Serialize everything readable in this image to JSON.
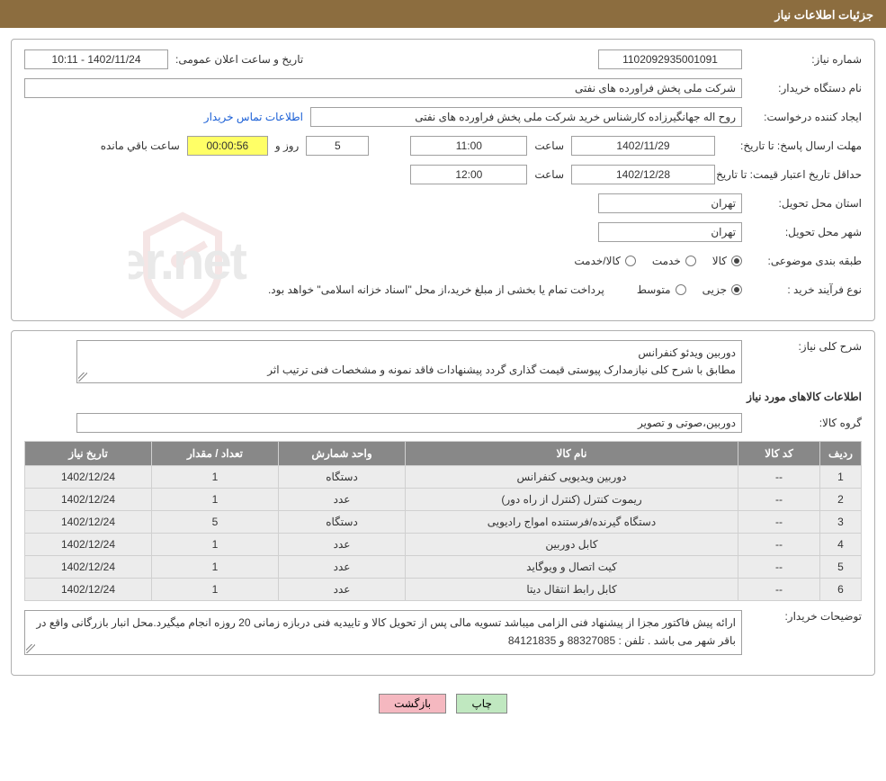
{
  "header": {
    "title": "جزئیات اطلاعات نیاز"
  },
  "labels": {
    "need_no": "شماره نیاز:",
    "announce": "تاریخ و ساعت اعلان عمومی:",
    "buyer_org": "نام دستگاه خریدار:",
    "requester": "ایجاد کننده درخواست:",
    "contact_link": "اطلاعات تماس خریدار",
    "deadline": "مهلت ارسال پاسخ: تا تاریخ:",
    "hour": "ساعت",
    "days_and": "روز و",
    "remaining": "ساعت باقي مانده",
    "min_validity": "حداقل تاریخ اعتبار قیمت: تا تاریخ:",
    "province": "استان محل تحویل:",
    "city": "شهر محل تحویل:",
    "classification": "طبقه بندی موضوعی:",
    "class_goods": "کالا",
    "class_service": "خدمت",
    "class_goods_service": "کالا/خدمت",
    "purchase_type": "نوع فرآیند خرید :",
    "pt_minor": "جزیی",
    "pt_medium": "متوسط",
    "pt_note": "پرداخت تمام یا بخشی از مبلغ خرید،از محل \"اسناد خزانه اسلامی\" خواهد بود.",
    "general_desc": "شرح کلی نیاز:",
    "items_info": "اطلاعات کالاهای مورد نیاز",
    "goods_group": "گروه کالا:",
    "buyer_notes": "توضیحات خریدار:"
  },
  "values": {
    "need_no": "1102092935001091",
    "announce": "1402/11/24 - 10:11",
    "buyer_org": "شرکت ملی پخش فراورده های نفتی",
    "requester": "روح اله جهانگیرزاده کارشناس خرید شرکت ملی پخش فراورده های نفتی",
    "deadline_date": "1402/11/29",
    "deadline_time": "11:00",
    "days_left": "5",
    "time_left": "00:00:56",
    "min_validity_date": "1402/12/28",
    "min_validity_time": "12:00",
    "province": "تهران",
    "city": "تهران",
    "general_desc": "دوربين ويدئو كنفرانس\nمطابق با شرح کلی نیازمدارک پیوستی قیمت گذاری گردد پیشنهادات فاقد نمونه و مشخصات فنی ترتیب اثر",
    "goods_group": "دوربین،صوتی و تصویر",
    "buyer_notes": "ارائه پیش فاکتور مجزا از پیشنهاد فنی الزامی میباشد تسویه مالی پس از تحویل کالا و تاییدیه فنی دربازه زمانی 20 روزه انجام میگیرد.محل انبار بازرگانی واقع در باقر شهر می باشد . تلفن : 88327085 و 84121835"
  },
  "table": {
    "headers": {
      "row": "ردیف",
      "code": "کد کالا",
      "name": "نام کالا",
      "unit": "واحد شمارش",
      "qty": "تعداد / مقدار",
      "date": "تاریخ نیاز"
    },
    "rows": [
      {
        "row": "1",
        "code": "--",
        "name": "دوربین ویدیویی کنفرانس",
        "unit": "دستگاه",
        "qty": "1",
        "date": "1402/12/24"
      },
      {
        "row": "2",
        "code": "--",
        "name": "ریموت کنترل (کنترل از راه دور)",
        "unit": "عدد",
        "qty": "1",
        "date": "1402/12/24"
      },
      {
        "row": "3",
        "code": "--",
        "name": "دستگاه گیرنده/فرستنده امواج رادیویی",
        "unit": "دستگاه",
        "qty": "5",
        "date": "1402/12/24"
      },
      {
        "row": "4",
        "code": "--",
        "name": "کابل دوربین",
        "unit": "عدد",
        "qty": "1",
        "date": "1402/12/24"
      },
      {
        "row": "5",
        "code": "--",
        "name": "کیت اتصال و ویوگاید",
        "unit": "عدد",
        "qty": "1",
        "date": "1402/12/24"
      },
      {
        "row": "6",
        "code": "--",
        "name": "کابل رابط انتقال دیتا",
        "unit": "عدد",
        "qty": "1",
        "date": "1402/12/24"
      }
    ]
  },
  "buttons": {
    "print": "چاپ",
    "back": "بازگشت"
  },
  "watermark": {
    "text": "AriaTender.net"
  },
  "colors": {
    "header_bg": "#8c6d3f",
    "th_bg": "#888888",
    "td_bg": "#ececec",
    "link": "#1a5fd6",
    "btn_print": "#c0e8c0",
    "btn_back": "#f5b8c0"
  }
}
